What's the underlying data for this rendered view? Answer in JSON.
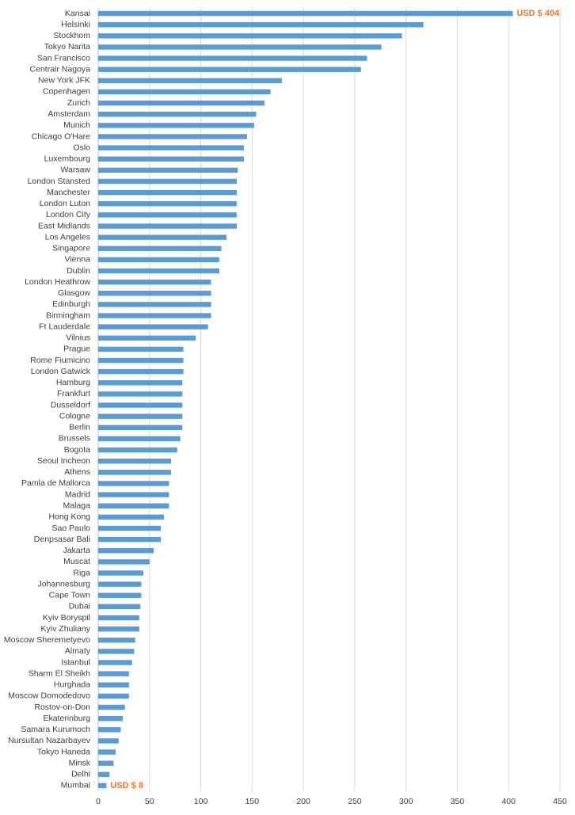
{
  "chart_data": {
    "type": "hbar",
    "color": "#5b9bd5",
    "grid": true,
    "label_color": "#f4712b",
    "categories": [
      "Kansai",
      "Helsinki",
      "Stockhom",
      "Tokyo Narita",
      "San Francisco",
      "Centrair Nagoya",
      "New York JFK",
      "Copenhagen",
      "Zurich",
      "Amsterdam",
      "Munich",
      "Chicago O'Hare",
      "Oslo",
      "Luxembourg",
      "Warsaw",
      "London Stansted",
      "Manchester",
      "London Luton",
      "London City",
      "East Midlands",
      "Los Angeles",
      "Singapore",
      "Vienna",
      "Dublin",
      "London Heathrow",
      "Glasgow",
      "Edinburgh",
      "Birmingham",
      "Ft Lauderdale",
      "Vilnius",
      "Prague",
      "Rome Fiumicino",
      "London Gatwick",
      "Hamburg",
      "Frankfurt",
      "Dusseldorf",
      "Cologne",
      "Berlin",
      "Brussels",
      "Bogota",
      "Seoul Incheon",
      "Athens",
      "Pamla de Mallorca",
      "Madrid",
      "Malaga",
      "Hong Kong",
      "Sao Paulo",
      "Denpsasar Bali",
      "Jakarta",
      "Muscat",
      "Riga",
      "Johannesburg",
      "Cape Town",
      "Dubai",
      "Kyiv Boryspil",
      "Kyiv Zhuliany",
      "Moscow Sheremetyevo",
      "Almaty",
      "Istanbul",
      "Sharm El Sheikh",
      "Hurghada",
      "Moscow Domodedovo",
      "Rostov-on-Don",
      "Ekaterinburg",
      "Samara Kurumoch",
      "Nursultan Nazarbayev",
      "Tokyo Haneda",
      "Minsk",
      "Delhi",
      "Mumbai"
    ],
    "values": [
      404,
      317,
      296,
      276,
      262,
      256,
      179,
      168,
      162,
      154,
      152,
      145,
      142,
      142,
      136,
      135,
      135,
      135,
      135,
      135,
      125,
      120,
      118,
      118,
      110,
      110,
      110,
      110,
      107,
      95,
      83,
      83,
      83,
      82,
      82,
      82,
      82,
      82,
      80,
      77,
      71,
      71,
      69,
      69,
      69,
      64,
      61,
      61,
      54,
      50,
      44,
      42,
      42,
      41,
      40,
      40,
      36,
      35,
      33,
      30,
      30,
      30,
      26,
      24,
      22,
      20,
      17,
      15,
      11,
      8
    ],
    "value_labels": [
      "USD $ 404",
      null,
      null,
      null,
      null,
      null,
      null,
      null,
      null,
      null,
      null,
      null,
      null,
      null,
      null,
      null,
      null,
      null,
      null,
      null,
      null,
      null,
      null,
      null,
      null,
      null,
      null,
      null,
      null,
      null,
      null,
      null,
      null,
      null,
      null,
      null,
      null,
      null,
      null,
      null,
      null,
      null,
      null,
      null,
      null,
      null,
      null,
      null,
      null,
      null,
      null,
      null,
      null,
      null,
      null,
      null,
      null,
      null,
      null,
      null,
      null,
      null,
      null,
      null,
      null,
      null,
      null,
      null,
      null,
      "USD $ 8"
    ],
    "xlim": [
      0,
      450
    ],
    "xticks": [
      0,
      50,
      100,
      150,
      200,
      250,
      300,
      350,
      400,
      450
    ]
  }
}
